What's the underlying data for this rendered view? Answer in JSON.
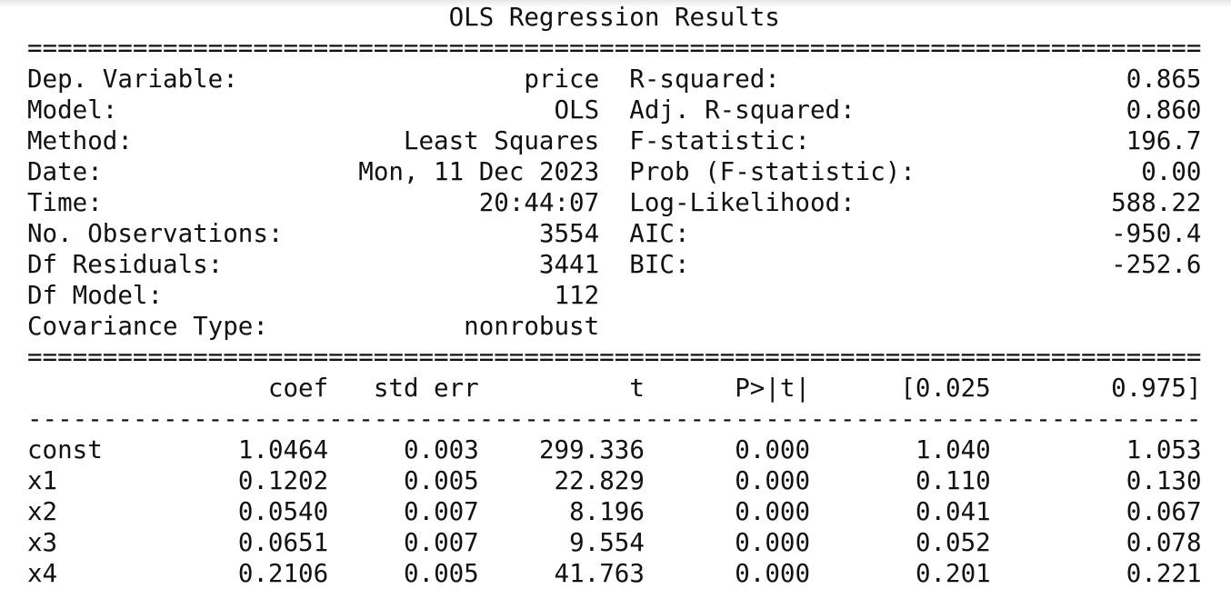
{
  "title": "OLS Regression Results",
  "rules": {
    "double": "==============================================================================",
    "single": "------------------------------------------------------------------------------"
  },
  "summary": {
    "left": [
      {
        "label": "Dep. Variable:",
        "value": "price"
      },
      {
        "label": "Model:",
        "value": "OLS"
      },
      {
        "label": "Method:",
        "value": "Least Squares"
      },
      {
        "label": "Date:",
        "value": "Mon, 11 Dec 2023"
      },
      {
        "label": "Time:",
        "value": "20:44:07"
      },
      {
        "label": "No. Observations:",
        "value": "3554"
      },
      {
        "label": "Df Residuals:",
        "value": "3441"
      },
      {
        "label": "Df Model:",
        "value": "112"
      },
      {
        "label": "Covariance Type:",
        "value": "nonrobust"
      }
    ],
    "right": [
      {
        "label": "R-squared:",
        "value": "0.865"
      },
      {
        "label": "Adj. R-squared:",
        "value": "0.860"
      },
      {
        "label": "F-statistic:",
        "value": "196.7"
      },
      {
        "label": "Prob (F-statistic):",
        "value": "0.00"
      },
      {
        "label": "Log-Likelihood:",
        "value": "588.22"
      },
      {
        "label": "AIC:",
        "value": "-950.4"
      },
      {
        "label": "BIC:",
        "value": "-252.6"
      }
    ]
  },
  "coef_table": {
    "headers": [
      "",
      "coef",
      "std err",
      "t",
      "P>|t|",
      "[0.025",
      "0.975]"
    ],
    "rows": [
      [
        "const",
        "1.0464",
        "0.003",
        "299.336",
        "0.000",
        "1.040",
        "1.053"
      ],
      [
        "x1",
        "0.1202",
        "0.005",
        "22.829",
        "0.000",
        "0.110",
        "0.130"
      ],
      [
        "x2",
        "0.0540",
        "0.007",
        "8.196",
        "0.000",
        "0.041",
        "0.067"
      ],
      [
        "x3",
        "0.0651",
        "0.007",
        "9.554",
        "0.000",
        "0.052",
        "0.078"
      ],
      [
        "x4",
        "0.2106",
        "0.005",
        "41.763",
        "0.000",
        "0.201",
        "0.221"
      ]
    ]
  }
}
